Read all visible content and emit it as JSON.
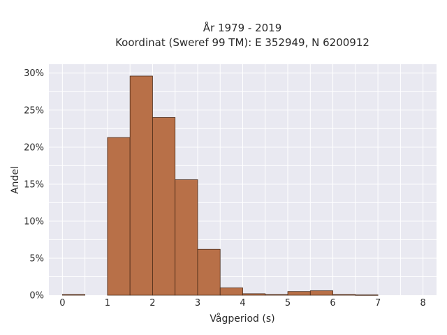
{
  "chart_data": {
    "type": "bar",
    "title_line1": "År 1979 - 2019",
    "title_line2": "Koordinat (Sweref 99 TM): E 352949, N 6200912",
    "xlabel": "Vågperiod (s)",
    "ylabel": "Andel",
    "xlim": [
      -0.3,
      8.3
    ],
    "ylim": [
      0,
      31.2
    ],
    "x_ticks": [
      0,
      1,
      2,
      3,
      4,
      5,
      6,
      7,
      8
    ],
    "y_ticks": [
      0,
      5,
      10,
      15,
      20,
      25,
      30
    ],
    "y_tick_labels": [
      "0%",
      "5%",
      "10%",
      "15%",
      "20%",
      "25%",
      "30%"
    ],
    "grid": true,
    "bar_color": "#b87048",
    "bar_edge_color": "#4a2a18",
    "background_color": "#e9e9f1",
    "bins": [
      {
        "x0": 0.0,
        "x1": 0.5,
        "value": 0.1
      },
      {
        "x0": 0.5,
        "x1": 1.0,
        "value": 0.0
      },
      {
        "x0": 1.0,
        "x1": 1.5,
        "value": 21.3
      },
      {
        "x0": 1.5,
        "x1": 2.0,
        "value": 29.6
      },
      {
        "x0": 2.0,
        "x1": 2.5,
        "value": 24.0
      },
      {
        "x0": 2.5,
        "x1": 3.0,
        "value": 15.6
      },
      {
        "x0": 3.0,
        "x1": 3.5,
        "value": 6.2
      },
      {
        "x0": 3.5,
        "x1": 4.0,
        "value": 1.0
      },
      {
        "x0": 4.0,
        "x1": 4.5,
        "value": 0.2
      },
      {
        "x0": 4.5,
        "x1": 5.0,
        "value": 0.1
      },
      {
        "x0": 5.0,
        "x1": 5.5,
        "value": 0.5
      },
      {
        "x0": 5.5,
        "x1": 6.0,
        "value": 0.6
      },
      {
        "x0": 6.0,
        "x1": 6.5,
        "value": 0.1
      },
      {
        "x0": 6.5,
        "x1": 7.0,
        "value": 0.05
      }
    ]
  }
}
